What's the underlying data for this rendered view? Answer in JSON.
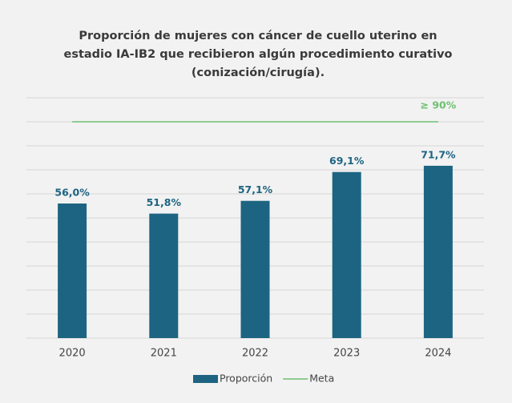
{
  "chart_data": {
    "type": "bar",
    "title": [
      "Proporción de mujeres con cáncer de cuello uterino en",
      "estadio IA-IB2 que recibieron algún procedimiento curativo",
      "(conización/cirugía)."
    ],
    "categories": [
      "2020",
      "2021",
      "2022",
      "2023",
      "2024"
    ],
    "series": [
      {
        "name": "Proporción",
        "type": "bar",
        "color": "#1d6482",
        "values": [
          56.0,
          51.8,
          57.1,
          69.1,
          71.7
        ],
        "value_labels": [
          "56,0%",
          "51,8%",
          "57,1%",
          "69,1%",
          "71,7%"
        ]
      },
      {
        "name": "Meta",
        "type": "line",
        "color": "#6cc070",
        "values": [
          90,
          90,
          90,
          90,
          90
        ]
      }
    ],
    "annotation": "≥ 90%",
    "ylim": [
      0,
      100
    ],
    "yticks": [
      0,
      10,
      20,
      30,
      40,
      50,
      60,
      70,
      80,
      90,
      100
    ],
    "grid": true,
    "legend": "bottom"
  }
}
